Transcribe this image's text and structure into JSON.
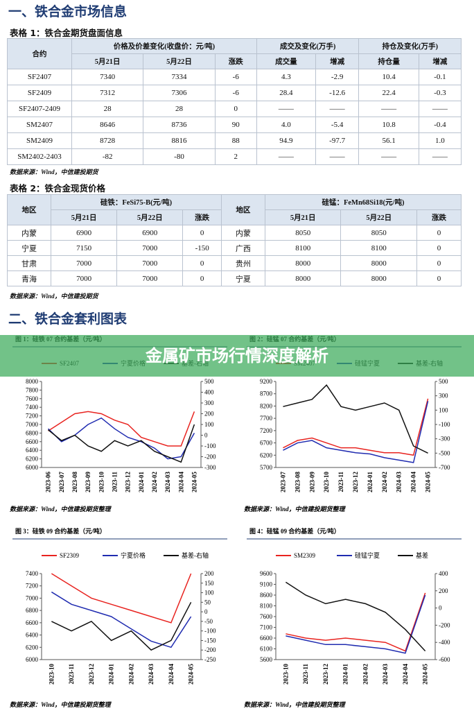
{
  "section1": "一、铁合金市场信息",
  "table1": {
    "caption": "表格 1：铁合金期货盘面信息",
    "group_headers": [
      "合约",
      "价格及价差变化(收盘价：元/吨)",
      "成交及变化(万手)",
      "持仓及变化(万手)"
    ],
    "sub_headers": [
      "5月21日",
      "5月22日",
      "涨跌",
      "成交量",
      "增减",
      "持仓量",
      "增减"
    ],
    "rows": [
      [
        "SF2407",
        "7340",
        "7334",
        "-6",
        "4.3",
        "-2.9",
        "10.4",
        "-0.1"
      ],
      [
        "SF2409",
        "7312",
        "7306",
        "-6",
        "28.4",
        "-12.6",
        "22.4",
        "-0.3"
      ],
      [
        "SF2407-2409",
        "28",
        "28",
        "0",
        "——",
        "——",
        "——",
        "——"
      ],
      [
        "SM2407",
        "8646",
        "8736",
        "90",
        "4.0",
        "-5.4",
        "10.8",
        "-0.4"
      ],
      [
        "SM2409",
        "8728",
        "8816",
        "88",
        "94.9",
        "-97.7",
        "56.1",
        "1.0"
      ],
      [
        "SM2402-2403",
        "-82",
        "-80",
        "2",
        "——",
        "——",
        "——",
        "——"
      ]
    ],
    "source": "数据来源：Wind，中信建投期货"
  },
  "table2": {
    "caption": "表格 2：铁合金现货价格",
    "group_headers": [
      "地区",
      "硅铁：FeSi75-B(元/吨)",
      "地区",
      "硅锰：FeMn68Si18(元/吨)"
    ],
    "sub_headers": [
      "5月21日",
      "5月22日",
      "涨跌",
      "5月21日",
      "5月22日",
      "涨跌"
    ],
    "rows": [
      [
        "内蒙",
        "6900",
        "6900",
        "0",
        "内蒙",
        "8050",
        "8050",
        "0"
      ],
      [
        "宁夏",
        "7150",
        "7000",
        "-150",
        "广西",
        "8100",
        "8100",
        "0"
      ],
      [
        "甘肃",
        "7000",
        "7000",
        "0",
        "贵州",
        "8000",
        "8000",
        "0"
      ],
      [
        "青海",
        "7000",
        "7000",
        "0",
        "宁夏",
        "8000",
        "8000",
        "0"
      ]
    ],
    "source": "数据来源：Wind，中信建投期货"
  },
  "section2": "二、铁合金套利图表",
  "banner": "金属矿市场行情深度解析",
  "chart_data": [
    {
      "type": "line",
      "title": "图 1：硅铁 07 合约基差（元/吨）",
      "categories": [
        "2023-06",
        "2023-07",
        "2023-08",
        "2023-09",
        "2023-10",
        "2023-11",
        "2023-12",
        "2024-01",
        "2024-02",
        "2024-03",
        "2024-04",
        "2024-05"
      ],
      "series": [
        {
          "name": "SF2407",
          "color": "#e8231f",
          "values": [
            6850,
            7050,
            7250,
            7300,
            7250,
            7100,
            7000,
            6700,
            6600,
            6500,
            6500,
            7300
          ]
        },
        {
          "name": "宁夏价格",
          "color": "#1f2bb0",
          "values": [
            6900,
            6600,
            6750,
            7000,
            7150,
            6900,
            6700,
            6600,
            6450,
            6200,
            6250,
            6800
          ]
        },
        {
          "name": "基差-右轴",
          "color": "#111111",
          "axis": "y2",
          "values": [
            50,
            -50,
            0,
            -100,
            -150,
            -50,
            -100,
            -50,
            -150,
            -200,
            -250,
            100
          ]
        }
      ],
      "ylim": [
        6000,
        8000
      ],
      "yticks": [
        6000,
        6200,
        6400,
        6600,
        6800,
        7000,
        7200,
        7400,
        7600,
        7800,
        8000
      ],
      "y2lim": [
        -300,
        500
      ],
      "y2ticks": [
        -300,
        -200,
        -100,
        0,
        100,
        200,
        300,
        400,
        500
      ],
      "source": "数据来源：Wind，中信建投期货整理"
    },
    {
      "type": "line",
      "title": "图 2：硅锰 07 合约基差（元/吨）",
      "categories": [
        "2023-07",
        "2023-08",
        "2023-09",
        "2023-10",
        "2023-11",
        "2023-12",
        "2024-01",
        "2024-02",
        "2024-03",
        "2024-04",
        "2024-05"
      ],
      "series": [
        {
          "name": "SM2407",
          "color": "#e8231f",
          "values": [
            6500,
            6800,
            6900,
            6700,
            6500,
            6500,
            6400,
            6300,
            6300,
            6200,
            8500
          ]
        },
        {
          "name": "硅锰宁夏",
          "color": "#1f2bb0",
          "values": [
            6400,
            6700,
            6800,
            6500,
            6400,
            6300,
            6250,
            6100,
            6000,
            5900,
            8400
          ]
        },
        {
          "name": "基差-右轴",
          "color": "#111111",
          "axis": "y2",
          "values": [
            150,
            200,
            250,
            450,
            150,
            100,
            150,
            200,
            100,
            -400,
            -500
          ]
        }
      ],
      "ylim": [
        5700,
        9200
      ],
      "yticks": [
        5700,
        6200,
        6700,
        7200,
        7700,
        8200,
        8700,
        9200
      ],
      "y2lim": [
        -700,
        500
      ],
      "y2ticks": [
        -700,
        -500,
        -300,
        -100,
        100,
        300,
        500
      ],
      "source": "数据来源：Wind，中信建投期货整理"
    },
    {
      "type": "line",
      "title": "图 3：硅铁 09 合约基差（元/吨）",
      "categories": [
        "2023-10",
        "2023-11",
        "2023-12",
        "2024-01",
        "2024-02",
        "2024-03",
        "2024-04",
        "2024-05"
      ],
      "series": [
        {
          "name": "SF2309",
          "color": "#e8231f",
          "values": [
            7400,
            7200,
            7000,
            6900,
            6800,
            6700,
            6600,
            7400
          ]
        },
        {
          "name": "宁夏价格",
          "color": "#1f2bb0",
          "values": [
            7100,
            6900,
            6800,
            6700,
            6500,
            6300,
            6200,
            6700
          ]
        },
        {
          "name": "基差-右轴",
          "color": "#111111",
          "axis": "y2",
          "values": [
            -50,
            -100,
            -50,
            -150,
            -100,
            -200,
            -150,
            50
          ]
        }
      ],
      "ylim": [
        6000,
        7400
      ],
      "yticks": [
        6000,
        6200,
        6400,
        6600,
        6800,
        7000,
        7200,
        7400
      ],
      "y2lim": [
        -250,
        200
      ],
      "y2ticks": [
        -250,
        -200,
        -150,
        -100,
        -50,
        0,
        50,
        100,
        150,
        200
      ],
      "source": "数据来源：Wind，中信建投期货整理"
    },
    {
      "type": "line",
      "title": "图 4：硅锰 09 合约基差（元/吨）",
      "categories": [
        "2023-10",
        "2023-11",
        "2023-12",
        "2024-01",
        "2024-02",
        "2024-03",
        "2024-04",
        "2024-05"
      ],
      "series": [
        {
          "name": "SM2309",
          "color": "#e8231f",
          "values": [
            6800,
            6600,
            6500,
            6600,
            6500,
            6400,
            6000,
            8700
          ]
        },
        {
          "name": "硅锰宁夏",
          "color": "#1f2bb0",
          "values": [
            6700,
            6500,
            6300,
            6300,
            6200,
            6100,
            5900,
            8600
          ]
        },
        {
          "name": "基差",
          "color": "#111111",
          "axis": "y2",
          "values": [
            300,
            150,
            50,
            100,
            50,
            -50,
            -250,
            -500
          ]
        }
      ],
      "ylim": [
        5600,
        9600
      ],
      "yticks": [
        5600,
        6100,
        6600,
        7100,
        7600,
        8100,
        8600,
        9100,
        9600
      ],
      "y2lim": [
        -600,
        400
      ],
      "y2ticks": [
        -600,
        -400,
        -200,
        0,
        200,
        400
      ],
      "source": "数据来源：Wind，中信建投期货整理"
    }
  ]
}
